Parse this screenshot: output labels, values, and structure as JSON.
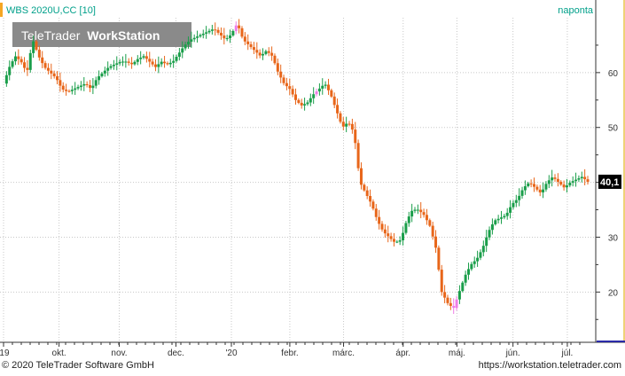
{
  "header": {
    "instrument": "WBS 2020U,CC [10]",
    "frequency": "naponta",
    "accent_color": "#f5a623",
    "text_color": "#00a08a"
  },
  "logo": {
    "brand": "TeleTrader",
    "product": "WorkStation"
  },
  "footer": {
    "copyright": "© 2020 TeleTrader Software GmbH",
    "url": "https://workstation.teletrader.com"
  },
  "last_price": {
    "label": "40,1",
    "value": 40.1
  },
  "chart_data": {
    "type": "candlestick",
    "title": "WBS 2020U,CC [10]",
    "frequency": "naponta",
    "ylim": [
      11,
      70
    ],
    "y_ticks": [
      {
        "value": 20,
        "label": "20"
      },
      {
        "value": 30,
        "label": "30"
      },
      {
        "value": 40,
        "label": "40"
      },
      {
        "value": 50,
        "label": "50"
      },
      {
        "value": 60,
        "label": "60"
      }
    ],
    "x_ticks": [
      {
        "label": "'19",
        "pos": 0.0
      },
      {
        "label": "okt.",
        "pos": 0.095
      },
      {
        "label": "nov.",
        "pos": 0.198
      },
      {
        "label": "dec.",
        "pos": 0.295
      },
      {
        "label": "'20",
        "pos": 0.39
      },
      {
        "label": "febr.",
        "pos": 0.49
      },
      {
        "label": "márc.",
        "pos": 0.582
      },
      {
        "label": "ápr.",
        "pos": 0.684
      },
      {
        "label": "máj.",
        "pos": 0.776
      },
      {
        "label": "jún.",
        "pos": 0.872
      },
      {
        "label": "júl.",
        "pos": 0.965
      }
    ],
    "up_color": "#1a9e4a",
    "down_color": "#e8661a",
    "highlight_color": "#ef7de6",
    "grid": true,
    "series": [
      {
        "t": 0.0,
        "v": 58
      },
      {
        "t": 0.01,
        "v": 61
      },
      {
        "t": 0.02,
        "v": 63
      },
      {
        "t": 0.03,
        "v": 62
      },
      {
        "t": 0.04,
        "v": 60
      },
      {
        "t": 0.05,
        "v": 66
      },
      {
        "t": 0.06,
        "v": 63
      },
      {
        "t": 0.07,
        "v": 61
      },
      {
        "t": 0.08,
        "v": 60
      },
      {
        "t": 0.09,
        "v": 59
      },
      {
        "t": 0.1,
        "v": 57
      },
      {
        "t": 0.11,
        "v": 56.5
      },
      {
        "t": 0.12,
        "v": 57
      },
      {
        "t": 0.13,
        "v": 57.5
      },
      {
        "t": 0.14,
        "v": 58
      },
      {
        "t": 0.15,
        "v": 57
      },
      {
        "t": 0.16,
        "v": 59
      },
      {
        "t": 0.17,
        "v": 60
      },
      {
        "t": 0.18,
        "v": 61
      },
      {
        "t": 0.19,
        "v": 61.5
      },
      {
        "t": 0.2,
        "v": 62
      },
      {
        "t": 0.21,
        "v": 62
      },
      {
        "t": 0.22,
        "v": 61.5
      },
      {
        "t": 0.23,
        "v": 62.5
      },
      {
        "t": 0.24,
        "v": 63
      },
      {
        "t": 0.25,
        "v": 62
      },
      {
        "t": 0.26,
        "v": 61
      },
      {
        "t": 0.27,
        "v": 62
      },
      {
        "t": 0.28,
        "v": 61.5
      },
      {
        "t": 0.29,
        "v": 62
      },
      {
        "t": 0.3,
        "v": 63.5
      },
      {
        "t": 0.31,
        "v": 65
      },
      {
        "t": 0.32,
        "v": 66
      },
      {
        "t": 0.33,
        "v": 66.5
      },
      {
        "t": 0.34,
        "v": 67
      },
      {
        "t": 0.35,
        "v": 67.5
      },
      {
        "t": 0.36,
        "v": 68
      },
      {
        "t": 0.37,
        "v": 67
      },
      {
        "t": 0.38,
        "v": 66
      },
      {
        "t": 0.39,
        "v": 67
      },
      {
        "t": 0.4,
        "v": 69
      },
      {
        "t": 0.41,
        "v": 66
      },
      {
        "t": 0.42,
        "v": 65
      },
      {
        "t": 0.43,
        "v": 64
      },
      {
        "t": 0.44,
        "v": 63
      },
      {
        "t": 0.45,
        "v": 64
      },
      {
        "t": 0.46,
        "v": 63
      },
      {
        "t": 0.47,
        "v": 60
      },
      {
        "t": 0.48,
        "v": 58
      },
      {
        "t": 0.49,
        "v": 57
      },
      {
        "t": 0.5,
        "v": 55
      },
      {
        "t": 0.51,
        "v": 54
      },
      {
        "t": 0.52,
        "v": 54.5
      },
      {
        "t": 0.53,
        "v": 56
      },
      {
        "t": 0.54,
        "v": 57
      },
      {
        "t": 0.55,
        "v": 58
      },
      {
        "t": 0.56,
        "v": 56
      },
      {
        "t": 0.57,
        "v": 53
      },
      {
        "t": 0.58,
        "v": 50
      },
      {
        "t": 0.59,
        "v": 51
      },
      {
        "t": 0.6,
        "v": 49
      },
      {
        "t": 0.61,
        "v": 40
      },
      {
        "t": 0.62,
        "v": 38
      },
      {
        "t": 0.63,
        "v": 36
      },
      {
        "t": 0.64,
        "v": 33
      },
      {
        "t": 0.65,
        "v": 31
      },
      {
        "t": 0.66,
        "v": 30
      },
      {
        "t": 0.67,
        "v": 29
      },
      {
        "t": 0.68,
        "v": 29.5
      },
      {
        "t": 0.69,
        "v": 33
      },
      {
        "t": 0.7,
        "v": 35
      },
      {
        "t": 0.71,
        "v": 35
      },
      {
        "t": 0.72,
        "v": 34
      },
      {
        "t": 0.73,
        "v": 32
      },
      {
        "t": 0.74,
        "v": 28
      },
      {
        "t": 0.75,
        "v": 20
      },
      {
        "t": 0.76,
        "v": 18
      },
      {
        "t": 0.77,
        "v": 17
      },
      {
        "t": 0.78,
        "v": 20
      },
      {
        "t": 0.79,
        "v": 23
      },
      {
        "t": 0.8,
        "v": 25
      },
      {
        "t": 0.81,
        "v": 26
      },
      {
        "t": 0.82,
        "v": 28
      },
      {
        "t": 0.83,
        "v": 31
      },
      {
        "t": 0.84,
        "v": 33
      },
      {
        "t": 0.85,
        "v": 33.5
      },
      {
        "t": 0.86,
        "v": 34
      },
      {
        "t": 0.87,
        "v": 36
      },
      {
        "t": 0.88,
        "v": 37
      },
      {
        "t": 0.89,
        "v": 39
      },
      {
        "t": 0.9,
        "v": 40
      },
      {
        "t": 0.91,
        "v": 39
      },
      {
        "t": 0.92,
        "v": 38
      },
      {
        "t": 0.93,
        "v": 40
      },
      {
        "t": 0.94,
        "v": 41
      },
      {
        "t": 0.95,
        "v": 40
      },
      {
        "t": 0.96,
        "v": 39
      },
      {
        "t": 0.97,
        "v": 40
      },
      {
        "t": 0.98,
        "v": 40.5
      },
      {
        "t": 0.99,
        "v": 41
      },
      {
        "t": 1.0,
        "v": 40.1
      }
    ]
  }
}
